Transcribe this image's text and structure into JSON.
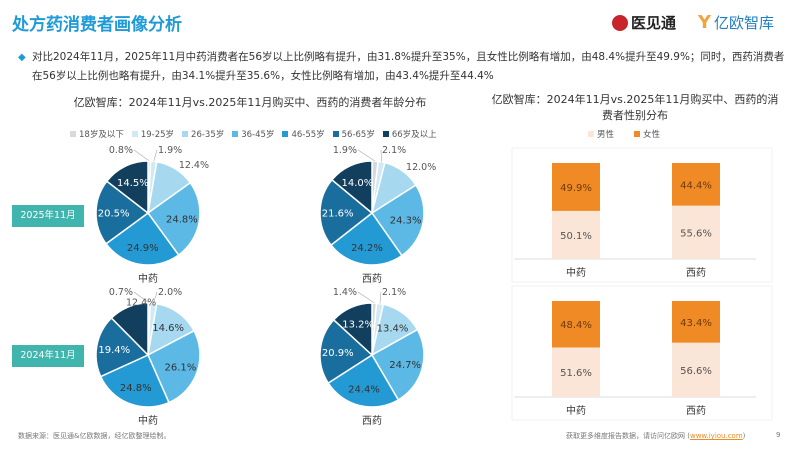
{
  "header": {
    "title": "处方药消费者画像分析",
    "logo_1": "医见通",
    "logo_2": "亿欧智库"
  },
  "summary": "对比2024年11月，2025年11月中药消费者在56岁以上比例略有提升，由31.8%提升至35%，且女性比例略有增加，由48.4%提升至49.9%；同时，西药消费者在56岁以上比例也略有提升，由34.1%提升至35.6%，女性比例略有增加，由43.4%提升至44.4%",
  "chart_data": [
    {
      "type": "pie",
      "title": "亿欧智库：2024年11月vs.2025年11月购买中、西药的消费者年龄分布",
      "legend": [
        "18岁及以下",
        "19-25岁",
        "26-35岁",
        "36-45岁",
        "46-55岁",
        "56-65岁",
        "66岁及以上"
      ],
      "colors": [
        "#d9d9d9",
        "#cfe9f5",
        "#a6d9f0",
        "#5cb8e4",
        "#239ad3",
        "#1a6e9e",
        "#123f5e"
      ],
      "periods": [
        "2025年11月",
        "2024年11月"
      ],
      "pies": [
        {
          "period": "2025年11月",
          "label": "中药",
          "values": [
            0.8,
            1.9,
            12.4,
            24.8,
            24.9,
            20.5,
            14.5
          ]
        },
        {
          "period": "2025年11月",
          "label": "西药",
          "values": [
            1.9,
            2.1,
            12.0,
            24.3,
            24.2,
            21.6,
            14.0
          ]
        },
        {
          "period": "2024年11月",
          "label": "中药",
          "values": [
            0.7,
            2.0,
            14.6,
            26.1,
            24.8,
            19.4,
            12.4
          ]
        },
        {
          "period": "2024年11月",
          "label": "西药",
          "values": [
            1.4,
            2.1,
            13.4,
            24.7,
            24.4,
            20.9,
            13.2
          ]
        }
      ]
    },
    {
      "type": "bar",
      "stacked": true,
      "title": "亿欧智库：2024年11月vs.2025年11月购买中、西药的消费者性别分布",
      "legend": [
        "男性",
        "女性"
      ],
      "colors": [
        "#fbe5d6",
        "#f08a24"
      ],
      "panels": [
        {
          "period": "2025年11月",
          "categories": [
            "中药",
            "西药"
          ],
          "series": [
            {
              "name": "男性",
              "values": [
                50.1,
                55.6
              ]
            },
            {
              "name": "女性",
              "values": [
                49.9,
                44.4
              ]
            }
          ]
        },
        {
          "period": "2024年11月",
          "categories": [
            "中药",
            "西药"
          ],
          "series": [
            {
              "name": "男性",
              "values": [
                51.6,
                56.6
              ]
            },
            {
              "name": "女性",
              "values": [
                48.4,
                43.4
              ]
            }
          ]
        }
      ]
    }
  ],
  "footer": {
    "source": "数据来源：医见通&亿欧数据，经亿欧整理绘制。",
    "more": "获取更多维度报告数据，请访问亿欧网 (",
    "link": "www.iyiou.com",
    "close": ")",
    "page": "9"
  }
}
